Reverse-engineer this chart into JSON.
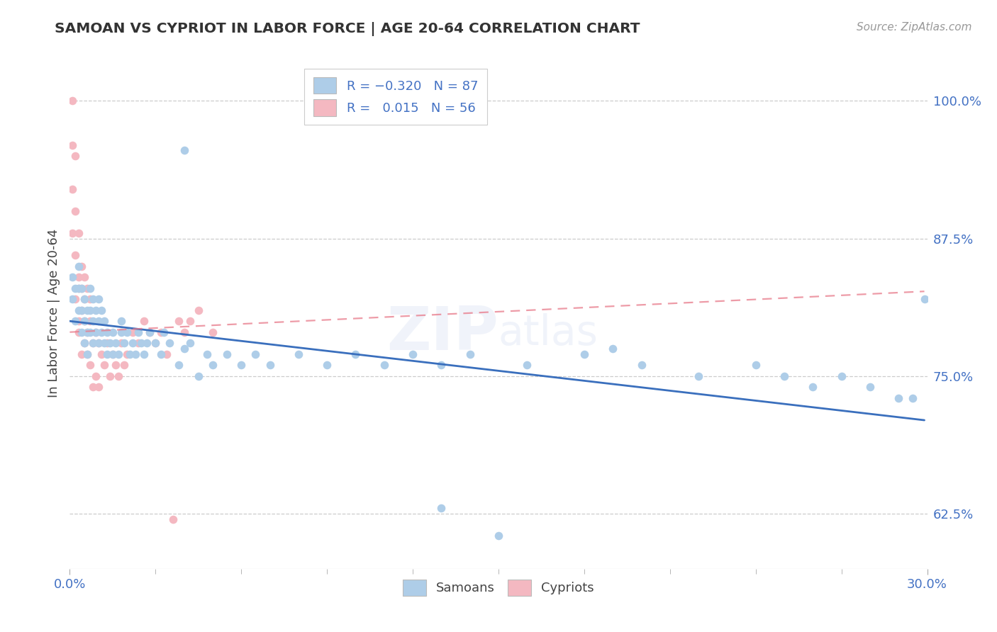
{
  "title": "SAMOAN VS CYPRIOT IN LABOR FORCE | AGE 20-64 CORRELATION CHART",
  "source": "Source: ZipAtlas.com",
  "ylabel": "In Labor Force | Age 20-64",
  "right_yticks": [
    0.625,
    0.75,
    0.875,
    1.0
  ],
  "right_yticklabels": [
    "62.5%",
    "75.0%",
    "87.5%",
    "100.0%"
  ],
  "xlim": [
    0.0,
    0.3
  ],
  "ylim": [
    0.575,
    1.04
  ],
  "blue_color": "#aecde8",
  "pink_color": "#f4b8c1",
  "blue_line_color": "#3a6fbd",
  "pink_line_color": "#e87a8a",
  "blue_line_x0": 0.0,
  "blue_line_y0": 0.8,
  "blue_line_x1": 0.299,
  "blue_line_y1": 0.71,
  "pink_line_x0": 0.0,
  "pink_line_y0": 0.79,
  "pink_line_x1": 0.299,
  "pink_line_y1": 0.827,
  "samoans_x": [
    0.001,
    0.001,
    0.002,
    0.002,
    0.003,
    0.003,
    0.003,
    0.004,
    0.004,
    0.004,
    0.005,
    0.005,
    0.005,
    0.006,
    0.006,
    0.006,
    0.007,
    0.007,
    0.007,
    0.008,
    0.008,
    0.008,
    0.009,
    0.009,
    0.01,
    0.01,
    0.01,
    0.011,
    0.011,
    0.012,
    0.012,
    0.013,
    0.013,
    0.014,
    0.015,
    0.015,
    0.016,
    0.017,
    0.018,
    0.018,
    0.019,
    0.02,
    0.021,
    0.022,
    0.023,
    0.024,
    0.025,
    0.026,
    0.027,
    0.028,
    0.03,
    0.032,
    0.033,
    0.035,
    0.038,
    0.04,
    0.042,
    0.045,
    0.048,
    0.05,
    0.055,
    0.06,
    0.065,
    0.07,
    0.08,
    0.09,
    0.1,
    0.11,
    0.12,
    0.13,
    0.14,
    0.16,
    0.18,
    0.2,
    0.22,
    0.24,
    0.25,
    0.26,
    0.27,
    0.28,
    0.29,
    0.295,
    0.299,
    0.04,
    0.13,
    0.15,
    0.19
  ],
  "samoans_y": [
    0.82,
    0.84,
    0.8,
    0.83,
    0.81,
    0.83,
    0.85,
    0.79,
    0.81,
    0.83,
    0.78,
    0.8,
    0.82,
    0.77,
    0.79,
    0.81,
    0.79,
    0.81,
    0.83,
    0.78,
    0.8,
    0.82,
    0.79,
    0.81,
    0.78,
    0.8,
    0.82,
    0.79,
    0.81,
    0.78,
    0.8,
    0.77,
    0.79,
    0.78,
    0.77,
    0.79,
    0.78,
    0.77,
    0.79,
    0.8,
    0.78,
    0.79,
    0.77,
    0.78,
    0.77,
    0.79,
    0.78,
    0.77,
    0.78,
    0.79,
    0.78,
    0.77,
    0.79,
    0.78,
    0.76,
    0.955,
    0.78,
    0.75,
    0.77,
    0.76,
    0.77,
    0.76,
    0.77,
    0.76,
    0.77,
    0.76,
    0.77,
    0.76,
    0.77,
    0.76,
    0.77,
    0.76,
    0.77,
    0.76,
    0.75,
    0.76,
    0.75,
    0.74,
    0.75,
    0.74,
    0.73,
    0.73,
    0.82,
    0.775,
    0.63,
    0.605,
    0.775
  ],
  "cypriots_x": [
    0.001,
    0.001,
    0.001,
    0.001,
    0.002,
    0.002,
    0.002,
    0.002,
    0.003,
    0.003,
    0.003,
    0.003,
    0.003,
    0.004,
    0.004,
    0.004,
    0.004,
    0.005,
    0.005,
    0.005,
    0.005,
    0.006,
    0.006,
    0.006,
    0.007,
    0.007,
    0.007,
    0.008,
    0.008,
    0.009,
    0.009,
    0.01,
    0.01,
    0.011,
    0.012,
    0.013,
    0.014,
    0.015,
    0.016,
    0.017,
    0.018,
    0.019,
    0.02,
    0.022,
    0.024,
    0.026,
    0.028,
    0.03,
    0.032,
    0.034,
    0.036,
    0.038,
    0.04,
    0.042,
    0.045,
    0.05
  ],
  "cypriots_y": [
    1.0,
    0.96,
    0.92,
    0.88,
    0.95,
    0.9,
    0.86,
    0.82,
    0.88,
    0.84,
    0.8,
    0.83,
    0.79,
    0.85,
    0.81,
    0.77,
    0.83,
    0.82,
    0.78,
    0.84,
    0.8,
    0.79,
    0.83,
    0.77,
    0.8,
    0.76,
    0.82,
    0.78,
    0.74,
    0.79,
    0.75,
    0.78,
    0.74,
    0.77,
    0.76,
    0.78,
    0.75,
    0.77,
    0.76,
    0.75,
    0.78,
    0.76,
    0.77,
    0.79,
    0.78,
    0.8,
    0.79,
    0.78,
    0.79,
    0.77,
    0.62,
    0.8,
    0.79,
    0.8,
    0.81,
    0.79
  ],
  "watermark_text": "ZIPatlas",
  "watermark_color": "#4472c4",
  "watermark_alpha": 0.08
}
